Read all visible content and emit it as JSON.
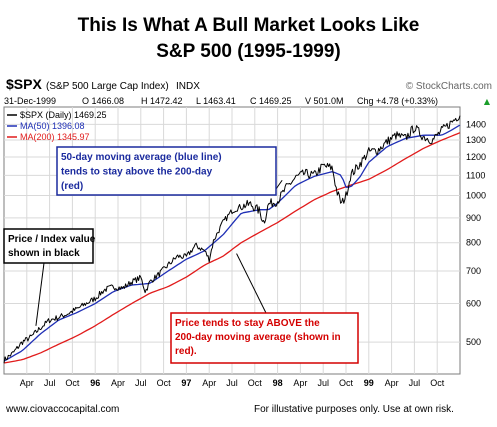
{
  "header": {
    "title_line1": "This Is What A Bull Market Looks Like",
    "title_line2": "S&P 500 (1995-1999)"
  },
  "footer": {
    "website": "www.ciovaccocapital.com",
    "disclaimer": "For illustative purposes only.  Use at own risk."
  },
  "colors": {
    "price": "#000000",
    "ma50": "#1f2fb5",
    "ma200": "#e11b1b",
    "annotation_blue_text": "#1a2a9e",
    "annotation_red_text": "#d40000"
  },
  "chart_data": {
    "type": "line",
    "symbol": "$SPX",
    "symbol_description": "(S&P 500 Large Cap Index)",
    "exchange": "INDX",
    "watermark": "© StockCharts.com",
    "date": "31-Dec-1999",
    "quote": {
      "open": "O 1466.08",
      "high": "H 1472.42",
      "low": "L 1463.41",
      "close": "C 1469.25",
      "volume": "V 501.0M",
      "change": "Chg +4.78 (+0.33%)",
      "change_arrow": "▲"
    },
    "legend": [
      {
        "label": "$SPX (Daily) 1469.25",
        "color": "#000000"
      },
      {
        "label": "MA(50) 1396.08",
        "color": "#1f2fb5"
      },
      {
        "label": "MA(200) 1345.97",
        "color": "#e11b1b"
      }
    ],
    "y_scale": "log",
    "y_range": [
      430,
      1520
    ],
    "y_ticks": [
      500,
      600,
      700,
      800,
      900,
      1000,
      1100,
      1200,
      1300,
      1400
    ],
    "x_range": [
      1995.0,
      2000.0
    ],
    "x_ticks": [
      {
        "t": 1995.25,
        "label": "Apr",
        "bold": false
      },
      {
        "t": 1995.5,
        "label": "Jul",
        "bold": false
      },
      {
        "t": 1995.75,
        "label": "Oct",
        "bold": false
      },
      {
        "t": 1996.0,
        "label": "96",
        "bold": true
      },
      {
        "t": 1996.25,
        "label": "Apr",
        "bold": false
      },
      {
        "t": 1996.5,
        "label": "Jul",
        "bold": false
      },
      {
        "t": 1996.75,
        "label": "Oct",
        "bold": false
      },
      {
        "t": 1997.0,
        "label": "97",
        "bold": true
      },
      {
        "t": 1997.25,
        "label": "Apr",
        "bold": false
      },
      {
        "t": 1997.5,
        "label": "Jul",
        "bold": false
      },
      {
        "t": 1997.75,
        "label": "Oct",
        "bold": false
      },
      {
        "t": 1998.0,
        "label": "98",
        "bold": true
      },
      {
        "t": 1998.25,
        "label": "Apr",
        "bold": false
      },
      {
        "t": 1998.5,
        "label": "Jul",
        "bold": false
      },
      {
        "t": 1998.75,
        "label": "Oct",
        "bold": false
      },
      {
        "t": 1999.0,
        "label": "99",
        "bold": true
      },
      {
        "t": 1999.25,
        "label": "Apr",
        "bold": false
      },
      {
        "t": 1999.5,
        "label": "Jul",
        "bold": false
      },
      {
        "t": 1999.75,
        "label": "Oct",
        "bold": false
      }
    ],
    "grid": true,
    "series": [
      {
        "name": "$SPX (Daily)",
        "key": "price",
        "x": [
          1995.0,
          1995.1,
          1995.2,
          1995.3,
          1995.4,
          1995.5,
          1995.6,
          1995.7,
          1995.8,
          1995.9,
          1996.0,
          1996.1,
          1996.2,
          1996.3,
          1996.4,
          1996.5,
          1996.55,
          1996.6,
          1996.7,
          1996.8,
          1996.9,
          1997.0,
          1997.1,
          1997.2,
          1997.25,
          1997.3,
          1997.4,
          1997.5,
          1997.6,
          1997.7,
          1997.8,
          1997.85,
          1997.9,
          1998.0,
          1998.1,
          1998.2,
          1998.3,
          1998.4,
          1998.5,
          1998.6,
          1998.65,
          1998.7,
          1998.75,
          1998.8,
          1998.9,
          1999.0,
          1999.1,
          1999.2,
          1999.3,
          1999.4,
          1999.5,
          1999.6,
          1999.7,
          1999.8,
          1999.9,
          2000.0
        ],
        "values": [
          459,
          475,
          500,
          513,
          535,
          555,
          562,
          572,
          585,
          600,
          615,
          640,
          650,
          645,
          665,
          678,
          635,
          665,
          690,
          720,
          750,
          748,
          790,
          770,
          740,
          810,
          880,
          930,
          950,
          960,
          930,
          880,
          960,
          975,
          1040,
          1090,
          1110,
          1100,
          1150,
          1140,
          1020,
          960,
          1000,
          1100,
          1160,
          1230,
          1240,
          1290,
          1330,
          1310,
          1380,
          1320,
          1300,
          1360,
          1410,
          1469
        ]
      },
      {
        "name": "MA(50)",
        "key": "ma50",
        "x": [
          1995.0,
          1995.2,
          1995.4,
          1995.6,
          1995.8,
          1996.0,
          1996.2,
          1996.4,
          1996.6,
          1996.8,
          1997.0,
          1997.2,
          1997.4,
          1997.6,
          1997.8,
          1997.9,
          1998.0,
          1998.2,
          1998.4,
          1998.6,
          1998.7,
          1998.75,
          1998.8,
          1998.9,
          1999.0,
          1999.2,
          1999.4,
          1999.6,
          1999.8,
          1999.9,
          2000.0
        ],
        "values": [
          457,
          480,
          520,
          555,
          575,
          600,
          635,
          655,
          660,
          700,
          740,
          770,
          830,
          920,
          935,
          935,
          965,
          1050,
          1095,
          1120,
          1100,
          1040,
          1040,
          1090,
          1170,
          1260,
          1310,
          1330,
          1330,
          1360,
          1396
        ]
      },
      {
        "name": "MA(200)",
        "key": "ma200",
        "x": [
          1995.0,
          1995.2,
          1995.4,
          1995.6,
          1995.8,
          1996.0,
          1996.2,
          1996.4,
          1996.6,
          1996.8,
          1997.0,
          1997.2,
          1997.4,
          1997.6,
          1997.8,
          1998.0,
          1998.2,
          1998.4,
          1998.6,
          1998.8,
          1999.0,
          1999.2,
          1999.4,
          1999.6,
          1999.8,
          2000.0
        ],
        "values": [
          453,
          460,
          475,
          495,
          515,
          540,
          570,
          600,
          630,
          650,
          680,
          720,
          750,
          800,
          840,
          880,
          930,
          980,
          1020,
          1050,
          1080,
          1130,
          1190,
          1250,
          1300,
          1346
        ]
      }
    ],
    "annotations": [
      {
        "key": "ma_note",
        "lines": [
          "50-day moving average (blue line)",
          "tends to stay above the 200-day",
          "(red)"
        ],
        "color": "#1a2a9e",
        "border": "#1a2a9e",
        "target": {
          "t": 1998.05,
          "v": 1075
        }
      },
      {
        "key": "price_note",
        "lines": [
          "Price / Index value",
          "shown in black"
        ],
        "color": "#000000",
        "border": "#000000",
        "target": {
          "t": 1995.35,
          "v": 540
        }
      },
      {
        "key": "red_note",
        "lines": [
          "Price tends to stay ABOVE the",
          "200-day moving average (shown in",
          "red)."
        ],
        "color": "#d40000",
        "border": "#d40000",
        "target": {
          "t": 1997.55,
          "v": 760
        }
      }
    ]
  }
}
